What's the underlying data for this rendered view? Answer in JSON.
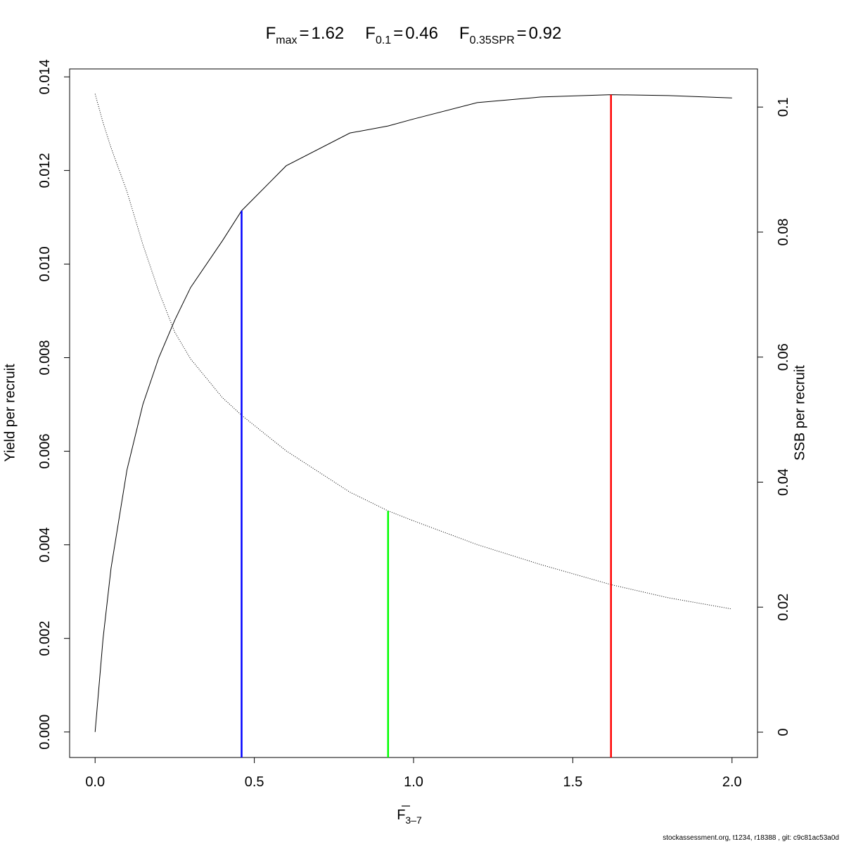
{
  "chart_data": {
    "type": "line",
    "title": [
      {
        "symbol": "F",
        "subscript": "max",
        "separator": "=",
        "value": 1.62
      },
      {
        "symbol": "F",
        "subscript": "0.1",
        "separator": "=",
        "value": 0.46
      },
      {
        "symbol": "F",
        "subscript": "0.35SPR",
        "separator": "=",
        "value": 0.92
      }
    ],
    "x_label": {
      "text": "F",
      "subscript": "3–7"
    },
    "y_label": "Yield per recruit",
    "y2_label": "SSB per recruit",
    "footer": "stockassessment.org, t1234, r18388 , git: c9c81ac53a0d",
    "x": [
      0,
      0.025,
      0.05,
      0.1,
      0.15,
      0.2,
      0.25,
      0.3,
      0.4,
      0.46,
      0.6,
      0.8,
      0.92,
      1.0,
      1.2,
      1.4,
      1.62,
      1.8,
      2.0
    ],
    "series": [
      {
        "color": "#000000",
        "dash": "solid",
        "values": [
          0,
          0.002,
          0.0035,
          0.0056,
          0.007,
          0.008,
          0.0088,
          0.0095,
          0.0105,
          0.01114,
          0.0121,
          0.0128,
          0.01295,
          0.0131,
          0.01345,
          0.01357,
          0.01362,
          0.0136,
          0.01355
        ]
      },
      {
        "color": "#000000",
        "dash": "dotted",
        "axis": "y2",
        "values": [
          0.1021,
          0.0975,
          0.0935,
          0.0865,
          0.078,
          0.0705,
          0.064,
          0.0597,
          0.0535,
          0.0507,
          0.045,
          0.0384,
          0.0354,
          0.0338,
          0.03,
          0.0268,
          0.0236,
          0.0215,
          0.0197
        ]
      }
    ],
    "reference_lines": [
      {
        "x": 0.46,
        "top": 0.01114,
        "color": "#0000ff"
      },
      {
        "x": 0.92,
        "top": 0.0354,
        "axis": "y2",
        "color": "#00ff00"
      },
      {
        "x": 1.62,
        "top": 0.01362,
        "color": "#ff0000"
      }
    ],
    "xlim": [
      -0.08,
      2.08
    ],
    "ylim": [
      -0.000545,
      0.01417
    ],
    "y2lim": [
      -0.00405,
      0.1061
    ],
    "xticks": [
      {
        "value": 0,
        "label": "0.0"
      },
      0.5,
      {
        "value": 1,
        "label": "1.0"
      },
      1.5,
      {
        "value": 2,
        "label": "2.0"
      }
    ],
    "yticks": [
      {
        "value": 0,
        "label": "0.000"
      },
      {
        "value": 0.002,
        "label": "0.002"
      },
      {
        "value": 0.004,
        "label": "0.004"
      },
      {
        "value": 0.006,
        "label": "0.006"
      },
      {
        "value": 0.008,
        "label": "0.008"
      },
      {
        "value": 0.01,
        "label": "0.010"
      },
      {
        "value": 0.012,
        "label": "0.012"
      },
      {
        "value": 0.014,
        "label": "0.014"
      }
    ],
    "y2ticks": [
      0,
      0.02,
      0.04,
      0.06,
      0.08,
      0.1
    ]
  }
}
